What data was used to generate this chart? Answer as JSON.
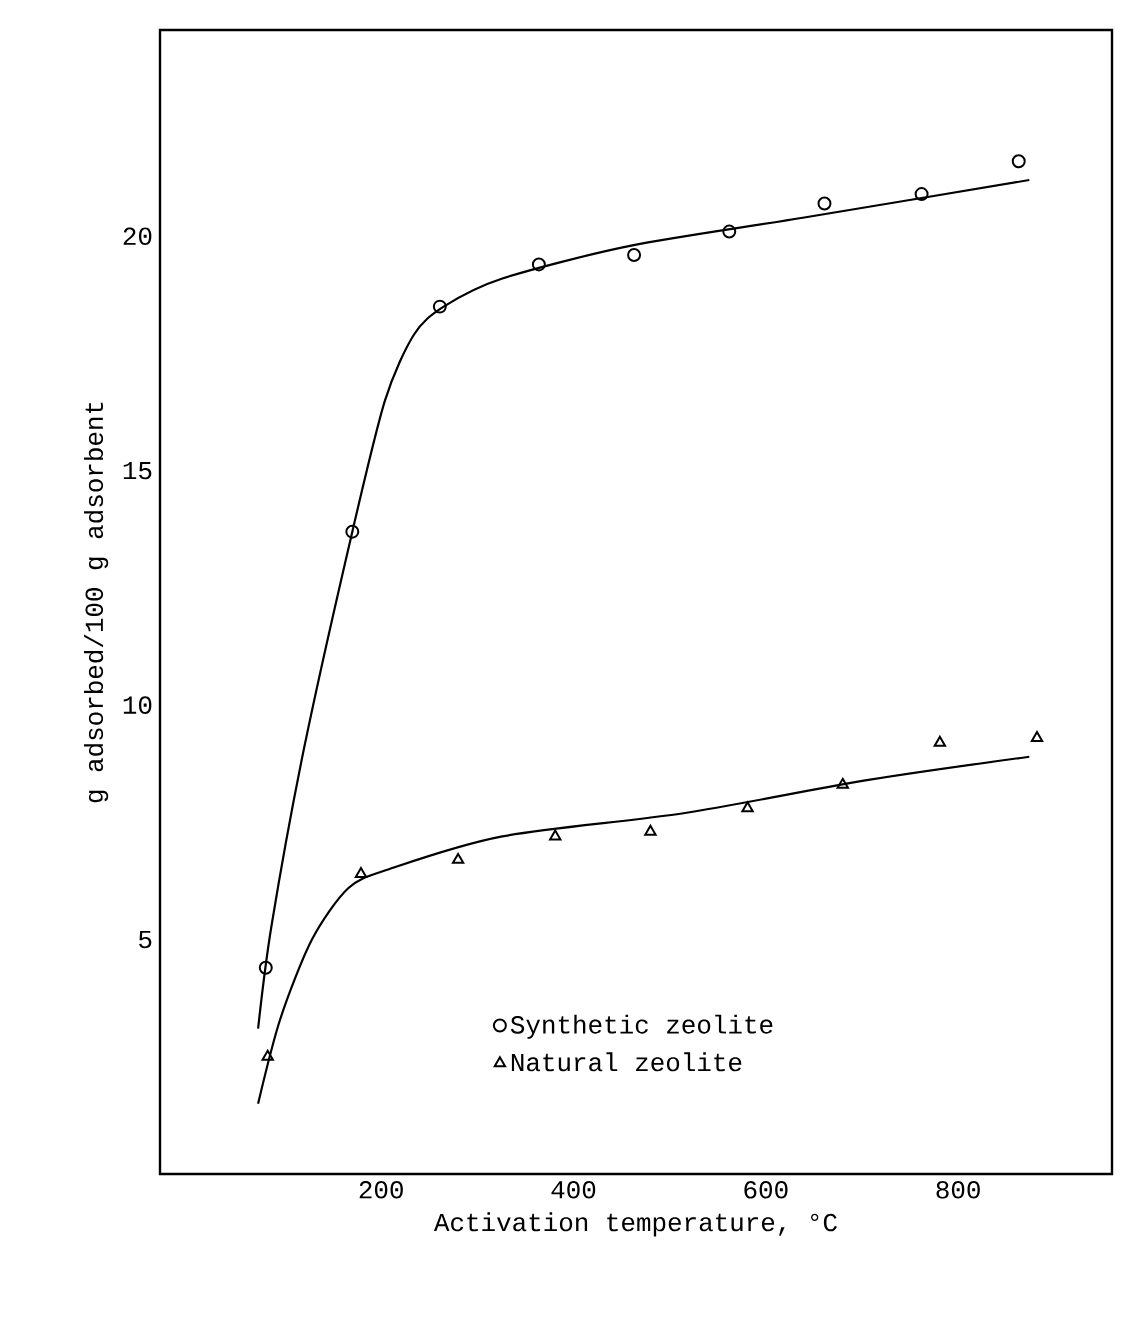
{
  "chart_data": {
    "type": "scatter",
    "xlabel": "Activation temperature, °C",
    "ylabel": "g adsorbed/100 g adsorbent",
    "xlim": [
      -30,
      960
    ],
    "ylim": [
      0,
      24.4
    ],
    "xticks": [
      200,
      400,
      600,
      800
    ],
    "yticks": [
      5,
      10,
      15,
      20
    ],
    "grid": false,
    "legend": "bottom",
    "series": [
      {
        "name": "Synthetic zeolite",
        "marker": "circle",
        "color": "#000000",
        "x": [
          80,
          170,
          261,
          364,
          463,
          562,
          661,
          762,
          863
        ],
        "values": [
          4.4,
          13.7,
          18.5,
          19.4,
          19.6,
          20.1,
          20.7,
          20.9,
          21.6
        ]
      },
      {
        "name": "Natural zeolite",
        "marker": "triangle",
        "color": "#000000",
        "x": [
          82,
          179,
          280,
          381,
          480,
          581,
          680,
          781,
          882
        ],
        "values": [
          2.5,
          6.4,
          6.7,
          7.2,
          7.3,
          7.8,
          8.3,
          9.2,
          9.3
        ]
      },
      {
        "type": "line",
        "marker": "none",
        "line_style": "solid",
        "color": "#000000",
        "x": [
          72,
          86,
          120,
          170,
          204,
          234,
          265,
          326,
          460,
          640,
          874
        ],
        "values": [
          3.1,
          5.3,
          9.1,
          13.7,
          16.5,
          17.9,
          18.5,
          19.1,
          19.8,
          20.4,
          21.2
        ]
      },
      {
        "type": "line",
        "marker": "none",
        "line_style": "solid",
        "color": "#000000",
        "x": [
          72,
          95,
          128,
          166,
          208,
          326,
          516,
          705,
          874
        ],
        "values": [
          1.5,
          3.3,
          5.0,
          6.1,
          6.5,
          7.2,
          7.7,
          8.4,
          8.9
        ]
      }
    ]
  }
}
